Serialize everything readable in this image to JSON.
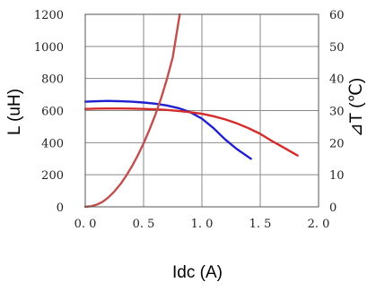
{
  "chart_data": {
    "type": "line",
    "xlabel": "Idc (A)",
    "ylabel": "L (uH)",
    "y2label": "⊿T (℃)",
    "xlim": [
      0,
      2.0
    ],
    "ylim": [
      0,
      1200
    ],
    "y2lim": [
      0,
      60
    ],
    "x_ticks": [
      0.0,
      0.5,
      1.0,
      1.5,
      2.0
    ],
    "x_tick_labels": [
      "0. 0",
      "0. 5",
      "1. 0",
      "1. 5",
      "2. 0"
    ],
    "y_ticks": [
      0,
      200,
      400,
      600,
      800,
      1000,
      1200
    ],
    "y_tick_labels": [
      "0",
      "200",
      "400",
      "600",
      "800",
      "1000",
      "1200"
    ],
    "y2_ticks": [
      0,
      10,
      20,
      30,
      40,
      50,
      60
    ],
    "y2_tick_labels": [
      "0",
      "10",
      "20",
      "30",
      "40",
      "50",
      "60"
    ],
    "grid": true,
    "colors": {
      "inductance_blue": "#1f1fcf",
      "inductance_red": "#d42a2a",
      "temperature_rise": "#c0504d",
      "grid": "#8a8a8a"
    },
    "series": [
      {
        "axis": "y",
        "color": "#1f1fcf",
        "x": [
          0.0,
          0.1,
          0.2,
          0.3,
          0.4,
          0.5,
          0.6,
          0.7,
          0.8,
          0.9,
          1.0,
          1.1,
          1.2,
          1.3,
          1.42
        ],
        "y": [
          655,
          658,
          660,
          658,
          655,
          650,
          643,
          632,
          615,
          590,
          550,
          490,
          420,
          360,
          300
        ]
      },
      {
        "axis": "y",
        "color": "#d42a2a",
        "x": [
          0.0,
          0.1,
          0.2,
          0.3,
          0.4,
          0.5,
          0.6,
          0.7,
          0.8,
          0.9,
          1.0,
          1.1,
          1.2,
          1.3,
          1.4,
          1.5,
          1.6,
          1.7,
          1.82
        ],
        "y": [
          610,
          612,
          613,
          613,
          612,
          610,
          608,
          604,
          598,
          590,
          580,
          565,
          545,
          520,
          490,
          455,
          410,
          370,
          320
        ]
      },
      {
        "axis": "y2",
        "color": "#c0504d",
        "x": [
          0.0,
          0.05,
          0.1,
          0.15,
          0.2,
          0.25,
          0.3,
          0.35,
          0.4,
          0.45,
          0.5,
          0.55,
          0.6,
          0.65,
          0.7,
          0.75,
          0.81
        ],
        "y": [
          0,
          0.2,
          0.7,
          1.6,
          3.0,
          4.8,
          7.0,
          9.6,
          12.6,
          16.0,
          19.8,
          24.0,
          28.6,
          33.8,
          39.8,
          46.6,
          60
        ]
      }
    ]
  }
}
